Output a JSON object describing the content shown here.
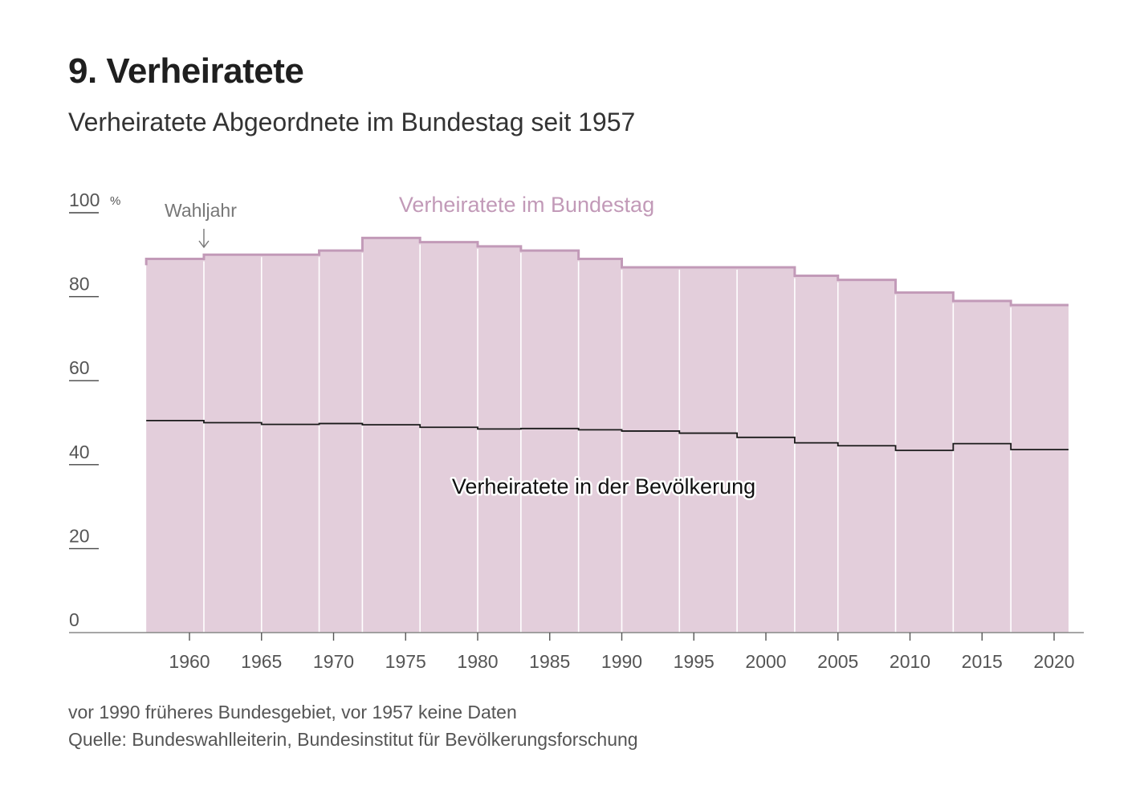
{
  "header": {
    "title": "9. Verheiratete",
    "subtitle": "Verheiratete Abgeordnete im Bundestag seit 1957"
  },
  "notes": {
    "line1": "vor 1990 früheres Bundesgebiet, vor 1957 keine Daten",
    "line2": "Quelle: Bundeswahlleiterin, Bundesinstitut für Bevölkerungsforschung"
  },
  "colors": {
    "area_fill": "#e3cedb",
    "bundestag_line": "#c29ab8",
    "bevoelkerung_line": "#1a1a1a",
    "grid": "#ffffff",
    "axis": "#888888"
  },
  "chart_data": {
    "type": "area",
    "title": "Verheiratete Abgeordnete im Bundestag seit 1957",
    "ylabel": "",
    "xlabel": "",
    "ylim": [
      0,
      100
    ],
    "xlim": [
      1951.5,
      2022
    ],
    "y_ticks": [
      0,
      20,
      40,
      60,
      80,
      100
    ],
    "y_tick_labels": [
      "0",
      "20",
      "40",
      "60",
      "80",
      "100"
    ],
    "y_unit": "%",
    "x_ticks": [
      1960,
      1965,
      1970,
      1975,
      1980,
      1985,
      1990,
      1995,
      2000,
      2005,
      2010,
      2015,
      2020
    ],
    "x_tick_labels": [
      "1960",
      "1965",
      "1970",
      "1975",
      "1980",
      "1985",
      "1990",
      "1995",
      "2000",
      "2005",
      "2010",
      "2015",
      "2020"
    ],
    "election_years": [
      1957,
      1961,
      1965,
      1969,
      1972,
      1976,
      1980,
      1983,
      1987,
      1990,
      1994,
      1998,
      2002,
      2005,
      2009,
      2013,
      2017
    ],
    "end_year": 2021,
    "annotation": {
      "text": "Wahljahr",
      "year": 1961
    },
    "series": [
      {
        "name": "Verheiratete im Bundestag",
        "values": [
          89,
          90,
          90,
          91,
          94,
          93,
          92,
          91,
          89,
          87,
          87,
          87,
          85,
          84,
          81,
          79,
          78
        ]
      },
      {
        "name": "Verheiratete in der Bevölkerung",
        "values": [
          50.5,
          50,
          49.6,
          49.8,
          49.5,
          48.9,
          48.5,
          48.6,
          48.3,
          48,
          47.5,
          46.5,
          45.2,
          44.5,
          43.4,
          45,
          43.6
        ]
      }
    ]
  }
}
